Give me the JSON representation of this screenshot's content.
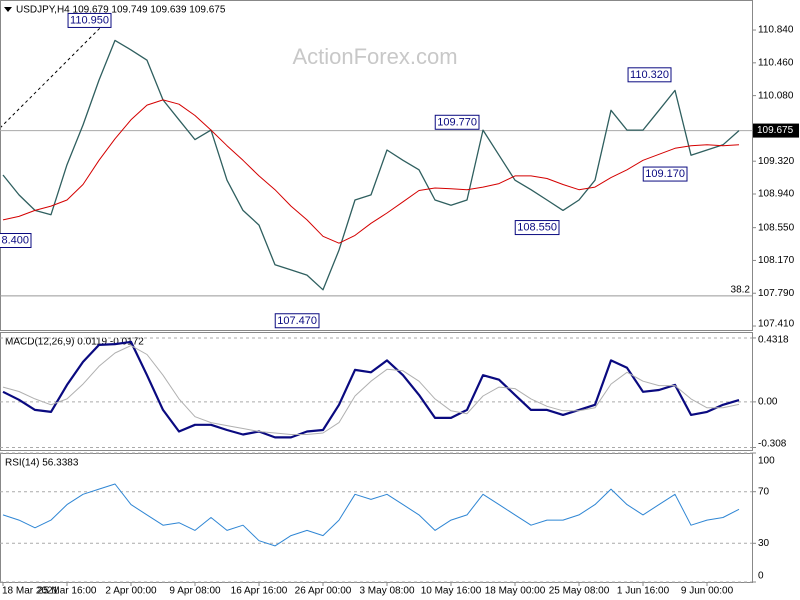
{
  "watermark": "ActionForex.com",
  "chart_data": [
    {
      "type": "line",
      "title": "USDJPY,H4 109.679 109.749 109.639 109.675",
      "x": [
        0,
        1,
        2,
        3,
        4,
        5,
        6,
        7,
        8,
        9,
        10,
        11,
        12,
        13,
        14,
        15,
        16,
        17,
        18,
        19,
        20,
        21,
        22,
        23,
        24,
        25,
        26,
        27,
        28,
        29,
        30,
        31,
        32,
        33,
        34,
        35,
        36,
        37,
        38,
        39,
        40,
        41,
        42,
        43,
        44,
        45,
        46
      ],
      "xlim": [
        -0.1875,
        46.8125
      ],
      "ylim": [
        107.364,
        111.188
      ],
      "yticks": [
        {
          "value": 110.84,
          "label": "110.840"
        },
        {
          "value": 110.46,
          "label": "110.460"
        },
        {
          "value": 110.08,
          "label": "110.080"
        },
        {
          "value": 109.32,
          "label": "109.320"
        },
        {
          "value": 108.94,
          "label": "108.940"
        },
        {
          "value": 108.55,
          "label": "108.550"
        },
        {
          "value": 108.17,
          "label": "108.170"
        },
        {
          "value": 107.79,
          "label": "107.790"
        },
        {
          "value": 107.41,
          "label": "107.410"
        }
      ],
      "grid": false,
      "series": [
        {
          "color": "#2f5f5f",
          "values": [
            109.16,
            108.93,
            108.75,
            108.7,
            109.28,
            109.74,
            110.26,
            110.72,
            110.61,
            110.49,
            110.03,
            109.8,
            109.57,
            109.68,
            109.1,
            108.75,
            108.58,
            108.12,
            108.06,
            108.0,
            107.83,
            108.29,
            108.87,
            108.93,
            109.45,
            109.33,
            109.22,
            108.87,
            108.81,
            108.87,
            109.68,
            109.39,
            109.1,
            108.99,
            108.87,
            108.75,
            108.87,
            109.1,
            109.91,
            109.68,
            109.68,
            109.91,
            110.14,
            109.39,
            109.45,
            109.51,
            109.675
          ]
        },
        {
          "color": "#d40000",
          "values": [
            108.64,
            108.68,
            108.75,
            108.8,
            108.87,
            109.05,
            109.33,
            109.58,
            109.8,
            109.97,
            110.03,
            109.98,
            109.85,
            109.68,
            109.5,
            109.33,
            109.15,
            108.99,
            108.8,
            108.64,
            108.45,
            108.37,
            108.46,
            108.6,
            108.72,
            108.85,
            108.98,
            109.01,
            109.0,
            108.99,
            109.02,
            109.06,
            109.15,
            109.15,
            109.12,
            109.05,
            108.99,
            109.02,
            109.13,
            109.22,
            109.33,
            109.4,
            109.47,
            109.5,
            109.51,
            109.5,
            109.51
          ]
        }
      ],
      "annotations": [
        {
          "text": "110.950",
          "x": 7,
          "y": 110.95
        },
        {
          "text": "8.400",
          "x": 2,
          "y": 108.4
        },
        {
          "text": "107.470",
          "x": 20,
          "y": 107.47
        },
        {
          "text": "109.770",
          "x": 30,
          "y": 109.77
        },
        {
          "text": "108.550",
          "x": 35,
          "y": 108.55
        },
        {
          "text": "110.320",
          "x": 42,
          "y": 110.32
        },
        {
          "text": "109.170",
          "x": 43,
          "y": 109.17
        }
      ],
      "fib_level": {
        "ratio": 38.2,
        "price": 107.76
      },
      "last_price": {
        "value": 109.675,
        "label": "109.675"
      }
    },
    {
      "type": "line",
      "title": "MACD(12,26,9) 0.0119 -0.0172",
      "x": [
        0,
        1,
        2,
        3,
        4,
        5,
        6,
        7,
        8,
        9,
        10,
        11,
        12,
        13,
        14,
        15,
        16,
        17,
        18,
        19,
        20,
        21,
        22,
        23,
        24,
        25,
        26,
        27,
        28,
        29,
        30,
        31,
        32,
        33,
        34,
        35,
        36,
        37,
        38,
        39,
        40,
        41,
        42,
        43,
        44,
        45,
        46
      ],
      "xlim": [
        -0.1875,
        46.8125
      ],
      "ylim": [
        -0.325,
        0.472
      ],
      "yticks": [
        0.4318,
        {
          "value": 0,
          "label": "0.00"
        },
        -0.308
      ],
      "grid": true,
      "series": [
        {
          "color": "#0a0a80",
          "values": [
            0.068,
            0.014,
            -0.054,
            -0.068,
            0.115,
            0.27,
            0.385,
            0.39,
            0.405,
            0.18,
            -0.054,
            -0.2,
            -0.155,
            -0.155,
            -0.19,
            -0.22,
            -0.2,
            -0.24,
            -0.24,
            -0.2,
            -0.19,
            -0.02,
            0.216,
            0.2,
            0.28,
            0.18,
            0.047,
            -0.108,
            -0.108,
            -0.054,
            0.18,
            0.15,
            0.047,
            -0.054,
            -0.054,
            -0.088,
            -0.054,
            -0.02,
            0.28,
            0.23,
            0.068,
            0.08,
            0.115,
            -0.088,
            -0.068,
            -0.02,
            0.0119
          ]
        },
        {
          "color": "#b0b0b0",
          "values": [
            0.1,
            0.07,
            0.02,
            -0.02,
            0.02,
            0.12,
            0.24,
            0.33,
            0.38,
            0.32,
            0.18,
            0.02,
            -0.1,
            -0.14,
            -0.16,
            -0.18,
            -0.2,
            -0.21,
            -0.22,
            -0.22,
            -0.21,
            -0.14,
            0.04,
            0.14,
            0.22,
            0.21,
            0.14,
            0.02,
            -0.06,
            -0.08,
            0.04,
            0.1,
            0.09,
            0.02,
            -0.03,
            -0.06,
            -0.06,
            -0.04,
            0.12,
            0.2,
            0.14,
            0.11,
            0.11,
            0.02,
            -0.04,
            -0.04,
            -0.0172
          ]
        }
      ]
    },
    {
      "type": "line",
      "title": "RSI(14) 56.3383",
      "x": [
        0,
        1,
        2,
        3,
        4,
        5,
        6,
        7,
        8,
        9,
        10,
        11,
        12,
        13,
        14,
        15,
        16,
        17,
        18,
        19,
        20,
        21,
        22,
        23,
        24,
        25,
        26,
        27,
        28,
        29,
        30,
        31,
        32,
        33,
        34,
        35,
        36,
        37,
        38,
        39,
        40,
        41,
        42,
        43,
        44,
        45,
        46
      ],
      "xlim": [
        -0.1875,
        46.8125
      ],
      "ylim": [
        0,
        100
      ],
      "yticks": [
        100,
        70,
        30,
        0
      ],
      "grid": true,
      "xticks": [
        {
          "value": 0,
          "label": "18 Mar 2021"
        },
        {
          "value": 4,
          "label": "25 Mar 16:00"
        },
        {
          "value": 8,
          "label": "2 Apr 00:00"
        },
        {
          "value": 12,
          "label": "9 Apr 08:00"
        },
        {
          "value": 16,
          "label": "16 Apr 16:00"
        },
        {
          "value": 20,
          "label": "26 Apr 00:00"
        },
        {
          "value": 24,
          "label": "3 May 08:00"
        },
        {
          "value": 28,
          "label": "10 May 16:00"
        },
        {
          "value": 32,
          "label": "18 May 00:00"
        },
        {
          "value": 36,
          "label": "25 May 08:00"
        },
        {
          "value": 40,
          "label": "1 Jun 16:00"
        },
        {
          "value": 44,
          "label": "9 Jun 00:00"
        }
      ],
      "series": [
        {
          "color": "#2f86d4",
          "values": [
            52,
            48,
            42,
            48,
            60,
            68,
            72,
            76,
            60,
            52,
            44,
            46,
            40,
            50,
            40,
            44,
            32,
            28,
            36,
            40,
            36,
            48,
            68,
            64,
            68,
            60,
            52,
            40,
            48,
            52,
            68,
            60,
            52,
            44,
            48,
            48,
            52,
            60,
            72,
            60,
            52,
            60,
            68,
            44,
            48,
            50,
            56.3383
          ]
        }
      ]
    }
  ]
}
